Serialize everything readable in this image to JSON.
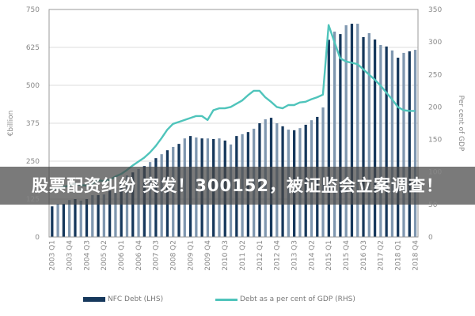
{
  "banner": {
    "text": "股票配资纠纷 突发！300152，被证监会立案调查！"
  },
  "chart_data": {
    "type": "bar+line",
    "categories": [
      "2003 Q1",
      "2003 Q2",
      "2003 Q3",
      "2003 Q4",
      "2004 Q1",
      "2004 Q2",
      "2004 Q3",
      "2004 Q4",
      "2005 Q1",
      "2005 Q2",
      "2005 Q3",
      "2005 Q4",
      "2006 Q1",
      "2006 Q2",
      "2006 Q3",
      "2006 Q4",
      "2007 Q1",
      "2007 Q2",
      "2007 Q3",
      "2007 Q4",
      "2008 Q1",
      "2008 Q2",
      "2008 Q3",
      "2008 Q4",
      "2009 Q1",
      "2009 Q2",
      "2009 Q3",
      "2009 Q4",
      "2010 Q1",
      "2010 Q2",
      "2010 Q3",
      "2010 Q4",
      "2011 Q1",
      "2011 Q2",
      "2011 Q3",
      "2011 Q4",
      "2012 Q1",
      "2012 Q2",
      "2012 Q3",
      "2012 Q4",
      "2013 Q1",
      "2013 Q2",
      "2013 Q3",
      "2013 Q4",
      "2014 Q1",
      "2014 Q2",
      "2014 Q3",
      "2014 Q4",
      "2015 Q1",
      "2015 Q2",
      "2015 Q3",
      "2015 Q4",
      "2016 Q1",
      "2016 Q2",
      "2016 Q3",
      "2016 Q4",
      "2017 Q1",
      "2017 Q2",
      "2017 Q3",
      "2017 Q4",
      "2018 Q1",
      "2018 Q2",
      "2018 Q3",
      "2018 Q4"
    ],
    "x_tick_labels": [
      "2003 Q1",
      "2003 Q4",
      "2004 Q3",
      "2005 Q2",
      "2006 Q1",
      "2006 Q4",
      "2007 Q3",
      "2008 Q2",
      "2009 Q1",
      "2009 Q4",
      "2010 Q3",
      "2011 Q2",
      "2012 Q1",
      "2012 Q4",
      "2013 Q3",
      "2014 Q2",
      "2015 Q1",
      "2015 Q4",
      "2016 Q3",
      "2017 Q2",
      "2018 Q1",
      "2018 Q4"
    ],
    "series": [
      {
        "name": "NFC Debt (LHS)",
        "type": "bar",
        "axis": "left",
        "color": "#16385c",
        "alt_color": "#7f97b0",
        "values": [
          101,
          109,
          109,
          122,
          125,
          120,
          125,
          138,
          138,
          140,
          153,
          161,
          185,
          203,
          213,
          224,
          234,
          247,
          260,
          273,
          286,
          297,
          307,
          325,
          333,
          328,
          325,
          325,
          323,
          325,
          318,
          305,
          333,
          339,
          346,
          357,
          375,
          388,
          393,
          375,
          365,
          354,
          352,
          359,
          370,
          385,
          396,
          427,
          650,
          677,
          669,
          698,
          703,
          703,
          659,
          672,
          651,
          633,
          628,
          615,
          591,
          607,
          612,
          617
        ]
      },
      {
        "name": "Debt as a per cent of GDP (RHS)",
        "type": "line",
        "axis": "right",
        "color": "#4fc4bb",
        "values": [
          74,
          75,
          77,
          79,
          82,
          80,
          79,
          82,
          87,
          86,
          88,
          93,
          97,
          103,
          110,
          116,
          122,
          130,
          140,
          152,
          165,
          174,
          177,
          180,
          183,
          186,
          186,
          180,
          195,
          198,
          198,
          200,
          205,
          210,
          218,
          225,
          225,
          215,
          208,
          200,
          198,
          203,
          203,
          207,
          208,
          212,
          215,
          219,
          326,
          300,
          275,
          270,
          268,
          266,
          258,
          250,
          242,
          233,
          222,
          212,
          200,
          195,
          194,
          194
        ]
      }
    ],
    "left_axis": {
      "label": "€billion",
      "ylim": [
        0,
        750
      ],
      "ticks": [
        "0",
        "125",
        "250",
        "375",
        "500",
        "625",
        "750"
      ]
    },
    "right_axis": {
      "label": "Per cent of GDP",
      "ylim": [
        0,
        350
      ],
      "ticks": [
        "0",
        "50",
        "100",
        "150",
        "200",
        "250",
        "300",
        "350"
      ]
    },
    "grid": true,
    "legend": "bottom"
  }
}
